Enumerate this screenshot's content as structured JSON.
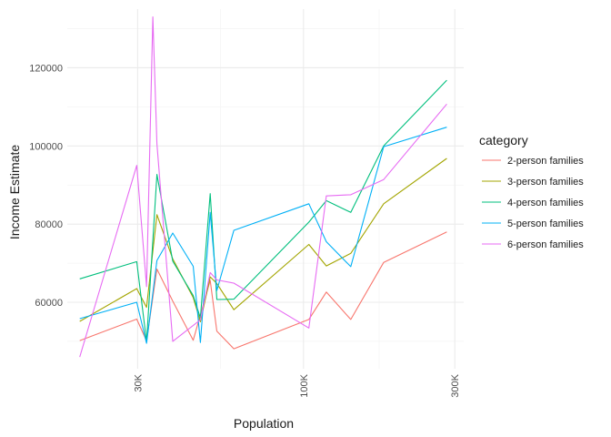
{
  "chart_data": {
    "type": "line",
    "xlabel": "Population",
    "ylabel": "Income Estimate",
    "x_scale": "log",
    "xlim": [
      18000,
      320000
    ],
    "ylim": [
      43000,
      135000
    ],
    "x_ticks": [
      {
        "value": 30000,
        "label": "30K"
      },
      {
        "value": 100000,
        "label": "100K"
      },
      {
        "value": 300000,
        "label": "300K"
      }
    ],
    "y_ticks": [
      {
        "value": 60000,
        "label": "60000"
      },
      {
        "value": 80000,
        "label": "80000"
      },
      {
        "value": 100000,
        "label": "100000"
      },
      {
        "value": 120000,
        "label": "120000"
      }
    ],
    "grid": true,
    "legend": {
      "title": "category",
      "position": "right"
    },
    "series": [
      {
        "name": "2-person families",
        "color": "#F8766D",
        "points": [
          [
            19700,
            50200
          ],
          [
            29800,
            55700
          ],
          [
            32000,
            50100
          ],
          [
            34500,
            68500
          ],
          [
            38700,
            60300
          ],
          [
            44900,
            50300
          ],
          [
            50800,
            65600
          ],
          [
            53300,
            52600
          ],
          [
            60300,
            48100
          ],
          [
            104000,
            55600
          ],
          [
            118000,
            62600
          ],
          [
            141000,
            55600
          ],
          [
            179000,
            70200
          ],
          [
            283000,
            78000
          ]
        ]
      },
      {
        "name": "3-person families",
        "color": "#A3A500",
        "points": [
          [
            19700,
            55100
          ],
          [
            29800,
            63500
          ],
          [
            32000,
            58700
          ],
          [
            34500,
            82400
          ],
          [
            38700,
            71100
          ],
          [
            44900,
            61200
          ],
          [
            47300,
            55000
          ],
          [
            50800,
            66500
          ],
          [
            53300,
            64800
          ],
          [
            60300,
            58100
          ],
          [
            104000,
            74800
          ],
          [
            118000,
            69300
          ],
          [
            141000,
            72500
          ],
          [
            179000,
            85200
          ],
          [
            283000,
            96800
          ]
        ]
      },
      {
        "name": "4-person families",
        "color": "#00BF7D",
        "points": [
          [
            19700,
            66000
          ],
          [
            29800,
            70400
          ],
          [
            32000,
            49900
          ],
          [
            34500,
            92700
          ],
          [
            38700,
            70500
          ],
          [
            44900,
            61700
          ],
          [
            47300,
            56000
          ],
          [
            50800,
            87800
          ],
          [
            53300,
            60700
          ],
          [
            60300,
            60800
          ],
          [
            104000,
            80500
          ],
          [
            118000,
            86000
          ],
          [
            141000,
            83000
          ],
          [
            179000,
            100000
          ],
          [
            283000,
            116800
          ]
        ]
      },
      {
        "name": "5-person families",
        "color": "#00B0F6",
        "points": [
          [
            19700,
            55800
          ],
          [
            29800,
            60000
          ],
          [
            32000,
            49500
          ],
          [
            34500,
            70700
          ],
          [
            38700,
            77700
          ],
          [
            44900,
            69200
          ],
          [
            47300,
            49700
          ],
          [
            50800,
            83000
          ],
          [
            53300,
            63000
          ],
          [
            60300,
            78400
          ],
          [
            104000,
            85200
          ],
          [
            118000,
            75500
          ],
          [
            141000,
            69100
          ],
          [
            179000,
            99800
          ],
          [
            283000,
            104800
          ]
        ]
      },
      {
        "name": "6-person families",
        "color": "#E76BF3",
        "points": [
          [
            19700,
            46000
          ],
          [
            29800,
            95000
          ],
          [
            32000,
            64000
          ],
          [
            33500,
            133000
          ],
          [
            34500,
            100500
          ],
          [
            38700,
            50000
          ],
          [
            47300,
            55500
          ],
          [
            50800,
            67600
          ],
          [
            53300,
            65700
          ],
          [
            60300,
            64900
          ],
          [
            104000,
            53400
          ],
          [
            118000,
            87200
          ],
          [
            141000,
            87500
          ],
          [
            179000,
            91400
          ],
          [
            283000,
            110700
          ]
        ]
      }
    ]
  }
}
